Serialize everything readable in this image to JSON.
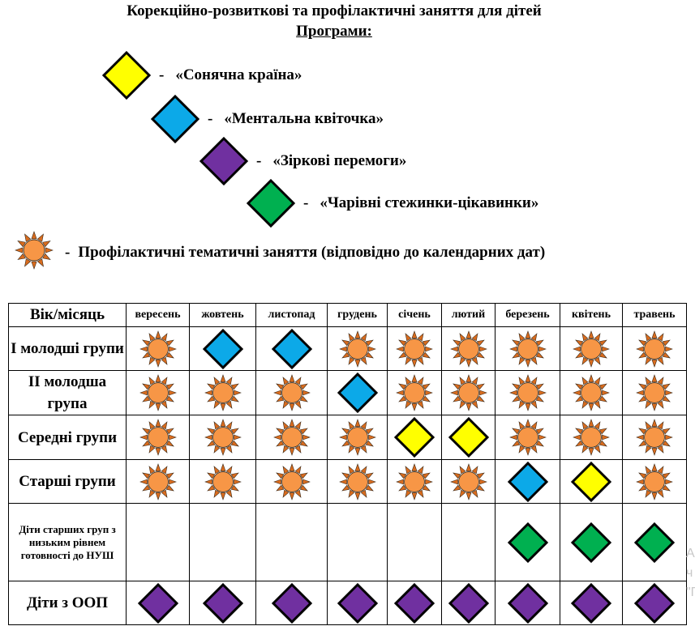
{
  "header": {
    "title": "Корекційно-розвиткові та профілактичні заняття для дітей",
    "subtitle": "Програми:"
  },
  "legend": {
    "programs": [
      {
        "label": "«Сонячна країна»",
        "color": "#ffff00",
        "icon": "yellow-diamond-icon"
      },
      {
        "label": "«Ментальна квіточка»",
        "color": "#0ca9e8",
        "icon": "blue-diamond-icon"
      },
      {
        "label": "«Зіркові перемоги»",
        "color": "#7030a0",
        "icon": "purple-diamond-icon"
      },
      {
        "label": "«Чарівні стежинки-цікавинки»",
        "color": "#00b050",
        "icon": "green-diamond-icon"
      }
    ],
    "dash": "-",
    "sun_label": "Профілактичні тематичні заняття (відповідно до календарних дат)",
    "sun_icon": "sun-icon"
  },
  "table": {
    "corner": "Вік/місяць",
    "months": [
      "вересень",
      "жовтень",
      "листопад",
      "грудень",
      "січень",
      "лютий",
      "березень",
      "квітень",
      "травень"
    ],
    "rows": [
      {
        "label": "І молодші групи",
        "cells": [
          "sun",
          "blue",
          "blue",
          "sun",
          "sun",
          "sun",
          "sun",
          "sun",
          "sun"
        ]
      },
      {
        "label": "ІІ молодша група",
        "cells": [
          "sun",
          "sun",
          "sun",
          "blue",
          "sun",
          "sun",
          "sun",
          "sun",
          "sun"
        ]
      },
      {
        "label": "Середні групи",
        "cells": [
          "sun",
          "sun",
          "sun",
          "sun",
          "yellow",
          "yellow",
          "sun",
          "sun",
          "sun"
        ]
      },
      {
        "label": "Старші групи",
        "cells": [
          "sun",
          "sun",
          "sun",
          "sun",
          "sun",
          "sun",
          "blue",
          "yellow",
          "sun"
        ]
      },
      {
        "label": "Діти старших груп з низьким рівнем готовності до НУШ",
        "cells": [
          "",
          "",
          "",
          "",
          "",
          "",
          "green",
          "green",
          "green"
        ]
      },
      {
        "label": "Діти з ООП",
        "cells": [
          "purple",
          "purple",
          "purple",
          "purple",
          "purple",
          "purple",
          "purple",
          "purple",
          "purple"
        ]
      }
    ]
  },
  "symbol_colors": {
    "yellow": "#ffff00",
    "blue": "#0ca9e8",
    "purple": "#7030a0",
    "green": "#00b050",
    "sun_fill": "#f79646",
    "sun_ray": "#d96c1e"
  },
  "watermark": "А\nч\n\"Г"
}
